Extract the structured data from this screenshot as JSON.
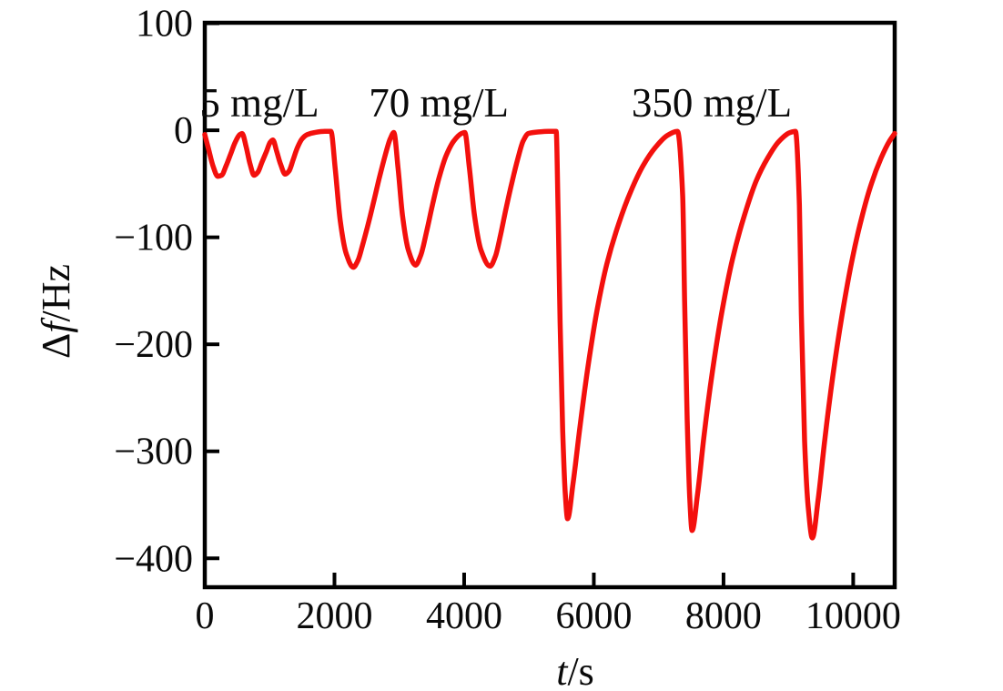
{
  "chart_data": {
    "type": "line",
    "title": "",
    "xlabel": "t/s",
    "ylabel": "Δf/Hz",
    "xlabel_parts": {
      "var": "t",
      "rest": "/s"
    },
    "ylabel_parts": {
      "prefix": "Δ",
      "var": "f",
      "rest": "/Hz"
    },
    "x_ticks": [
      0,
      2000,
      4000,
      6000,
      8000,
      10000
    ],
    "y_ticks": [
      100,
      0,
      -100,
      -200,
      -300,
      -400
    ],
    "xlim": [
      0,
      10640
    ],
    "ylim": [
      -427,
      100.5
    ],
    "grid": false,
    "legend": "none",
    "line_color": "#f3100d",
    "annotations": [
      {
        "label": "5 mg/L",
        "t": 842,
        "f": 12.8
      },
      {
        "label": "70 mg/L",
        "t": 3610,
        "f": 12.8
      },
      {
        "label": "350 mg/L",
        "t": 7818,
        "f": 12.8
      }
    ],
    "series": [
      {
        "name": "frequency_shift",
        "color": "#f3100d",
        "points": [
          [
            0,
            -4
          ],
          [
            60,
            -18
          ],
          [
            130,
            -34
          ],
          [
            200,
            -43
          ],
          [
            260,
            -42
          ],
          [
            330,
            -33
          ],
          [
            400,
            -22
          ],
          [
            470,
            -11
          ],
          [
            540,
            -4
          ],
          [
            575,
            -3
          ],
          [
            640,
            -16
          ],
          [
            700,
            -32
          ],
          [
            760,
            -42
          ],
          [
            820,
            -39
          ],
          [
            880,
            -30
          ],
          [
            950,
            -20
          ],
          [
            1010,
            -11
          ],
          [
            1050,
            -9
          ],
          [
            1110,
            -20
          ],
          [
            1170,
            -32
          ],
          [
            1240,
            -41
          ],
          [
            1300,
            -38
          ],
          [
            1360,
            -28
          ],
          [
            1430,
            -16
          ],
          [
            1500,
            -8
          ],
          [
            1580,
            -4
          ],
          [
            1700,
            -2
          ],
          [
            1850,
            -1
          ],
          [
            1945,
            -1
          ],
          [
            2010,
            -35
          ],
          [
            2090,
            -85
          ],
          [
            2180,
            -115
          ],
          [
            2290,
            -128
          ],
          [
            2360,
            -122
          ],
          [
            2430,
            -108
          ],
          [
            2510,
            -90
          ],
          [
            2600,
            -68
          ],
          [
            2690,
            -45
          ],
          [
            2780,
            -24
          ],
          [
            2860,
            -8
          ],
          [
            2915,
            -2
          ],
          [
            2980,
            -35
          ],
          [
            3050,
            -80
          ],
          [
            3140,
            -112
          ],
          [
            3250,
            -126
          ],
          [
            3330,
            -117
          ],
          [
            3420,
            -95
          ],
          [
            3510,
            -70
          ],
          [
            3610,
            -45
          ],
          [
            3720,
            -24
          ],
          [
            3840,
            -10
          ],
          [
            3960,
            -3
          ],
          [
            4010,
            -2
          ],
          [
            4080,
            -35
          ],
          [
            4160,
            -80
          ],
          [
            4260,
            -112
          ],
          [
            4400,
            -127
          ],
          [
            4480,
            -118
          ],
          [
            4560,
            -98
          ],
          [
            4650,
            -72
          ],
          [
            4740,
            -48
          ],
          [
            4830,
            -26
          ],
          [
            4910,
            -10
          ],
          [
            4990,
            -3
          ],
          [
            5150,
            -1.5
          ],
          [
            5300,
            -1
          ],
          [
            5420,
            -1
          ],
          [
            5450,
            -80
          ],
          [
            5480,
            -180
          ],
          [
            5520,
            -280
          ],
          [
            5560,
            -340
          ],
          [
            5595,
            -363
          ],
          [
            5680,
            -330
          ],
          [
            5780,
            -280
          ],
          [
            5900,
            -225
          ],
          [
            6050,
            -168
          ],
          [
            6200,
            -125
          ],
          [
            6380,
            -88
          ],
          [
            6570,
            -57
          ],
          [
            6760,
            -33
          ],
          [
            6950,
            -16
          ],
          [
            7130,
            -5
          ],
          [
            7290,
            -1
          ],
          [
            7370,
            -60
          ],
          [
            7400,
            -160
          ],
          [
            7440,
            -270
          ],
          [
            7480,
            -345
          ],
          [
            7515,
            -374
          ],
          [
            7600,
            -340
          ],
          [
            7700,
            -285
          ],
          [
            7830,
            -225
          ],
          [
            7980,
            -168
          ],
          [
            8140,
            -120
          ],
          [
            8320,
            -80
          ],
          [
            8500,
            -48
          ],
          [
            8680,
            -26
          ],
          [
            8860,
            -10
          ],
          [
            9030,
            -2
          ],
          [
            9110,
            -1
          ],
          [
            9170,
            -70
          ],
          [
            9200,
            -170
          ],
          [
            9250,
            -290
          ],
          [
            9310,
            -355
          ],
          [
            9370,
            -381
          ],
          [
            9460,
            -345
          ],
          [
            9560,
            -290
          ],
          [
            9690,
            -228
          ],
          [
            9830,
            -172
          ],
          [
            9980,
            -122
          ],
          [
            10130,
            -82
          ],
          [
            10280,
            -50
          ],
          [
            10430,
            -26
          ],
          [
            10560,
            -10
          ],
          [
            10640,
            -3
          ]
        ]
      }
    ]
  }
}
